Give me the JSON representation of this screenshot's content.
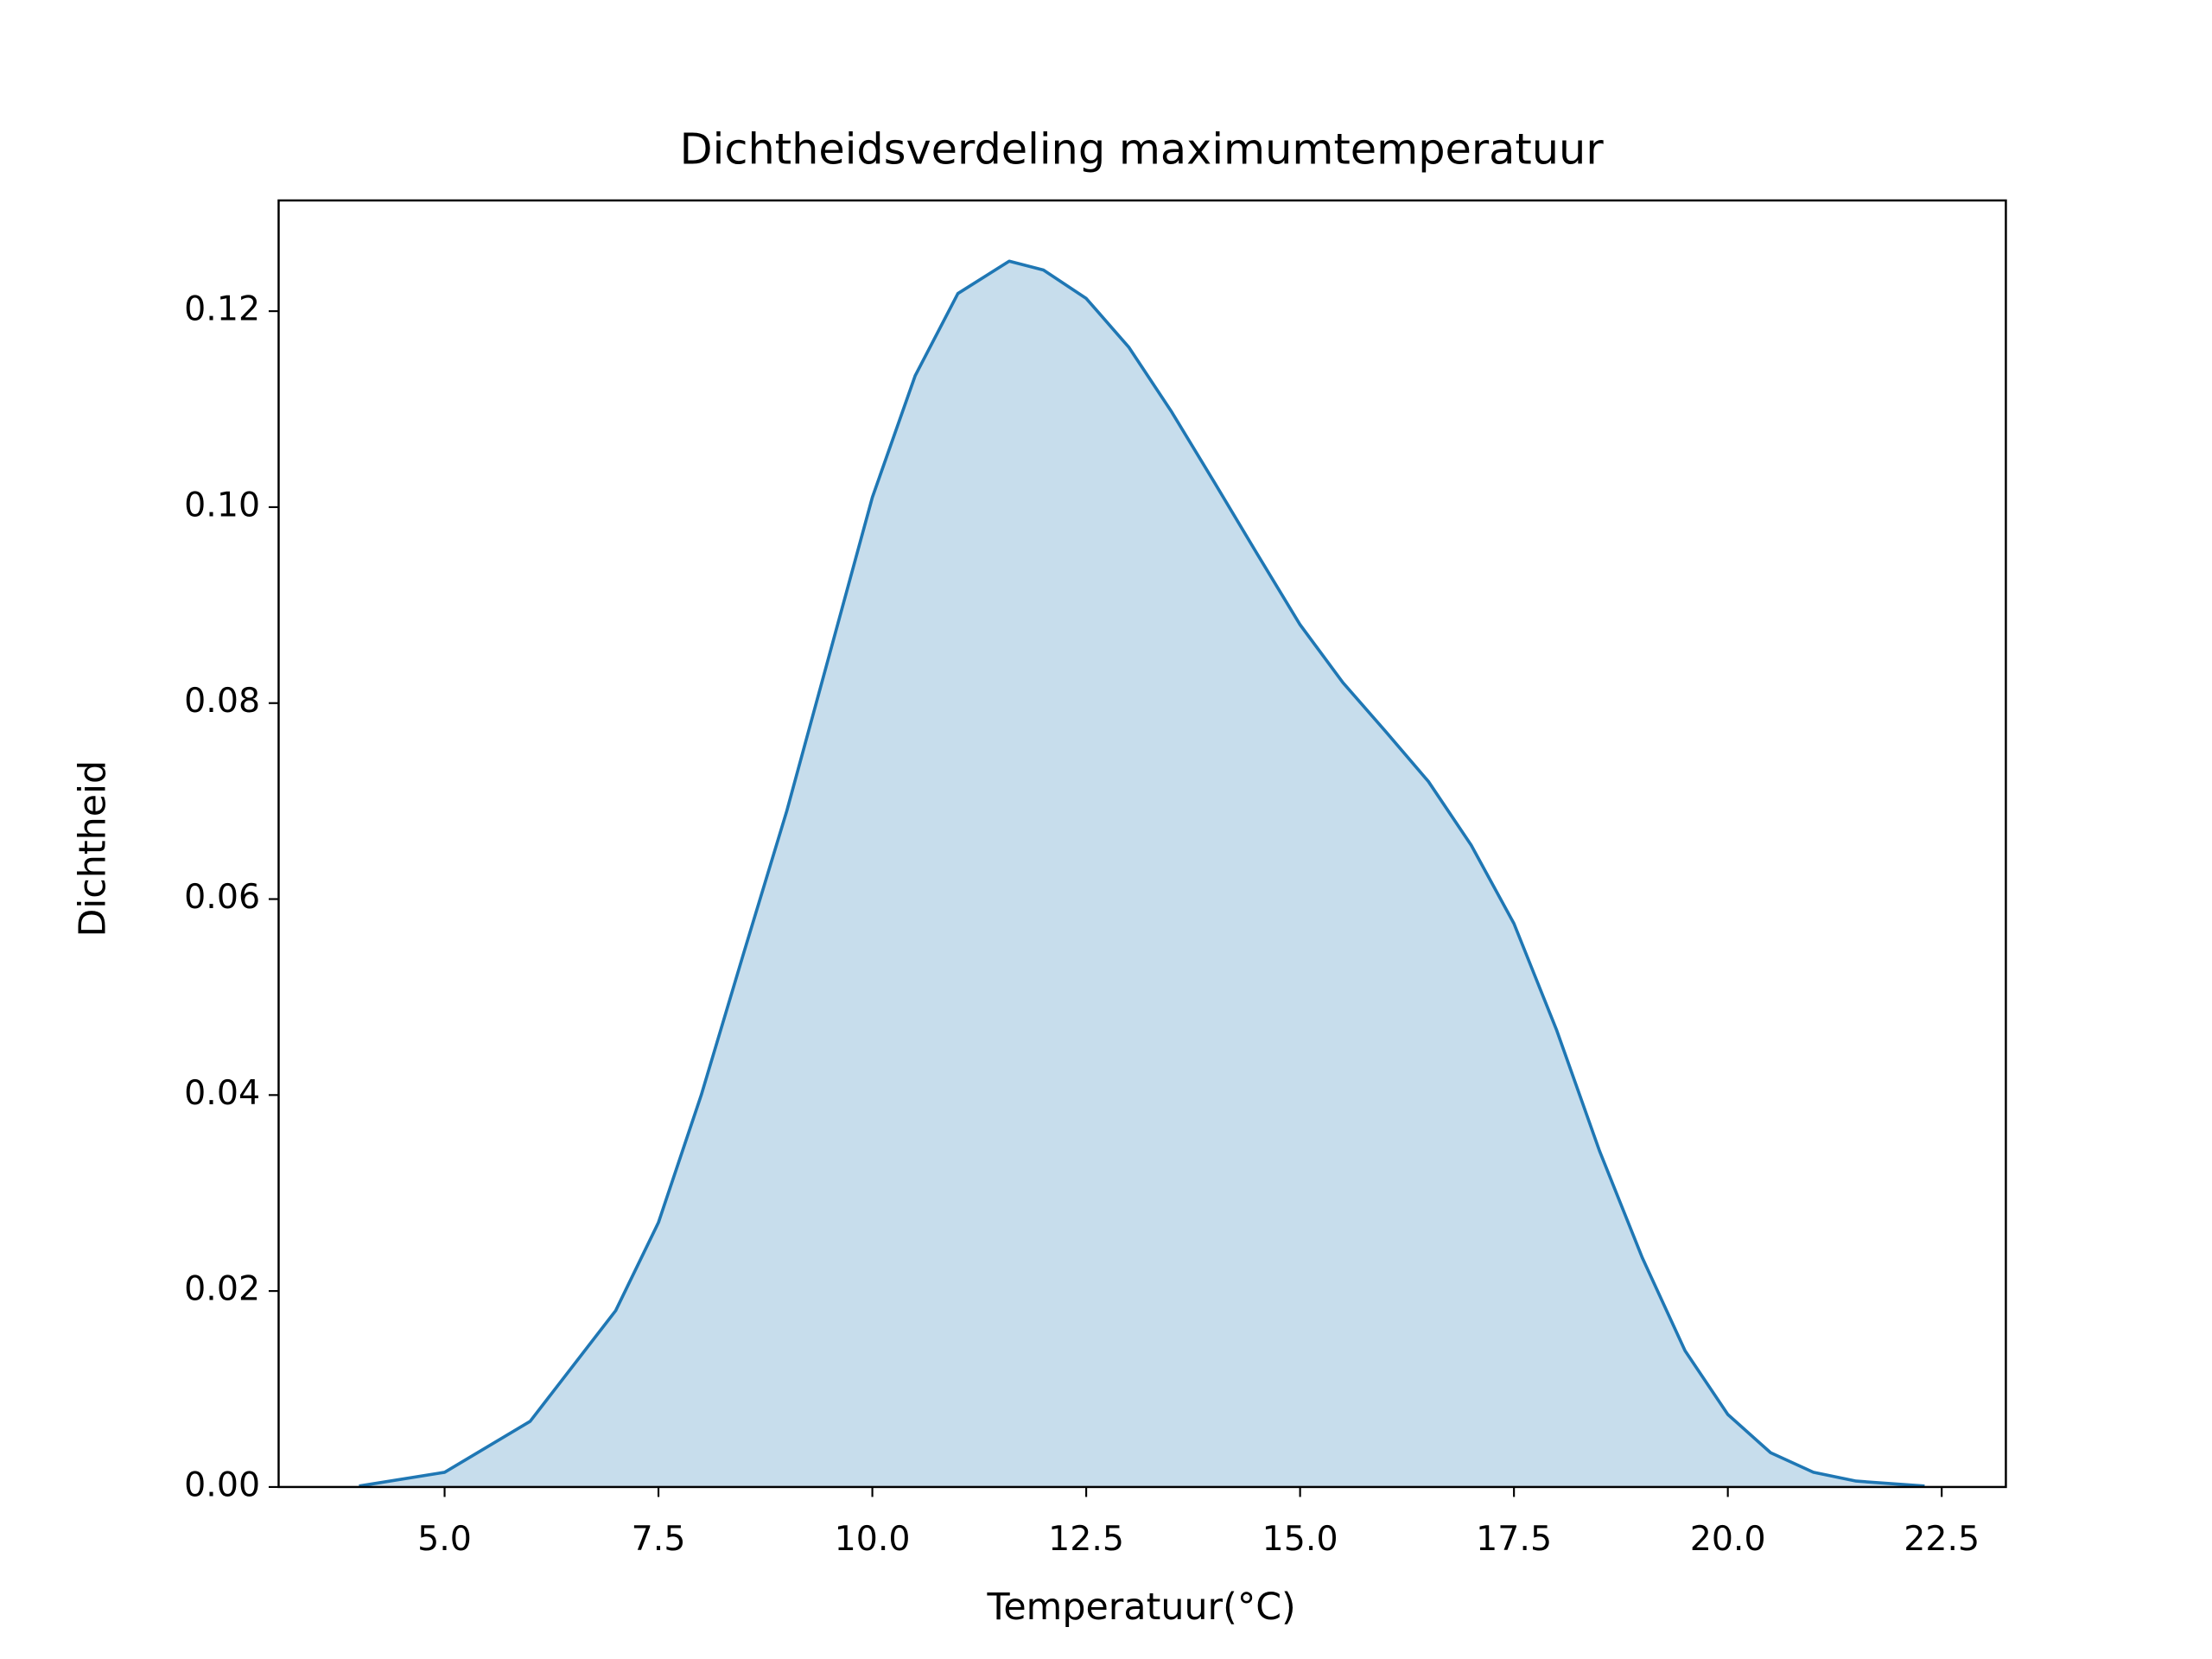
{
  "chart_data": {
    "type": "kde",
    "title": "Dichtheidsverdeling maximumtemperatuur",
    "x_label": "Temperatuur(°C)",
    "y_label": "Dichtheid",
    "x": [
      4.0,
      5.0,
      6.0,
      7.0,
      7.5,
      8.0,
      8.5,
      9.0,
      9.5,
      10.0,
      10.5,
      11.0,
      11.6,
      12.0,
      12.5,
      13.0,
      13.5,
      14.0,
      14.5,
      15.0,
      15.5,
      16.0,
      16.5,
      17.0,
      17.5,
      18.0,
      18.5,
      19.0,
      19.5,
      20.0,
      20.5,
      21.0,
      21.5,
      22.3
    ],
    "series": [
      {
        "color": "#1f77b4",
        "values": [
          0.0001,
          0.0015,
          0.0067,
          0.018,
          0.027,
          0.04,
          0.0546,
          0.069,
          0.085,
          0.101,
          0.1134,
          0.1218,
          0.1251,
          0.1242,
          0.1213,
          0.1163,
          0.1097,
          0.1025,
          0.0952,
          0.088,
          0.0821,
          0.0771,
          0.072,
          0.0655,
          0.0575,
          0.0466,
          0.0343,
          0.0234,
          0.0139,
          0.0074,
          0.0035,
          0.0015,
          0.0006,
          0.0001
        ]
      }
    ],
    "fill_opacity": 0.25,
    "xlim": [
      3.06,
      23.25
    ],
    "ylim": [
      0,
      0.1313
    ],
    "xticks": [
      {
        "value": 5,
        "label": "5.0"
      },
      {
        "value": 7.5,
        "label": "7.5"
      },
      {
        "value": 10,
        "label": "10.0"
      },
      {
        "value": 12.5,
        "label": "12.5"
      },
      {
        "value": 15,
        "label": "15.0"
      },
      {
        "value": 17.5,
        "label": "17.5"
      },
      {
        "value": 20,
        "label": "20.0"
      },
      {
        "value": 22.5,
        "label": "22.5"
      }
    ],
    "yticks": [
      {
        "value": 0,
        "label": "0.00"
      },
      {
        "value": 0.02,
        "label": "0.02"
      },
      {
        "value": 0.04,
        "label": "0.04"
      },
      {
        "value": 0.06,
        "label": "0.06"
      },
      {
        "value": 0.08,
        "label": "0.08"
      },
      {
        "value": 0.1,
        "label": "0.10"
      },
      {
        "value": 0.12,
        "label": "0.12"
      }
    ],
    "grid": false
  }
}
